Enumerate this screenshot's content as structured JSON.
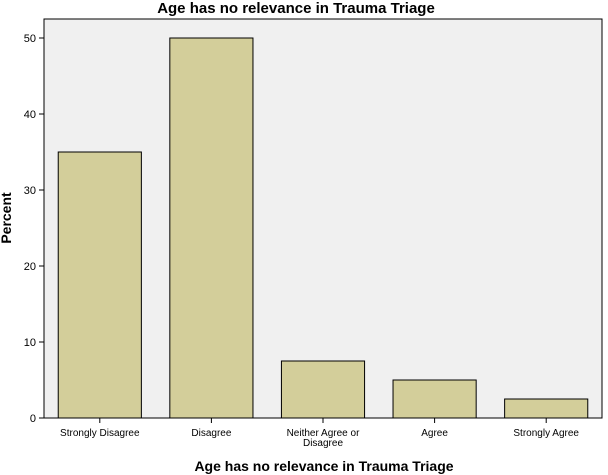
{
  "chart_data": {
    "type": "bar",
    "title": "Age has no relevance in Trauma Triage",
    "xlabel": "Age has no relevance in Trauma Triage",
    "ylabel": "Percent",
    "categories": [
      "Strongly Disagree",
      "Disagree",
      "Neither Agree or Disagree",
      "Agree",
      "Strongly Agree"
    ],
    "category_lines": [
      [
        "Strongly Disagree"
      ],
      [
        "Disagree"
      ],
      [
        "Neither Agree or",
        "Disagree"
      ],
      [
        "Agree"
      ],
      [
        "Strongly Agree"
      ]
    ],
    "values": [
      35,
      50,
      7.5,
      5,
      2.5
    ],
    "ylim": [
      0,
      52.5
    ],
    "yticks": [
      0,
      10,
      20,
      30,
      40,
      50
    ],
    "grid": false,
    "colors": {
      "plot_background": "#f0f0f0",
      "bar_fill": "#d3ce9a",
      "bar_stroke": "#000000",
      "axis": "#000000"
    }
  }
}
